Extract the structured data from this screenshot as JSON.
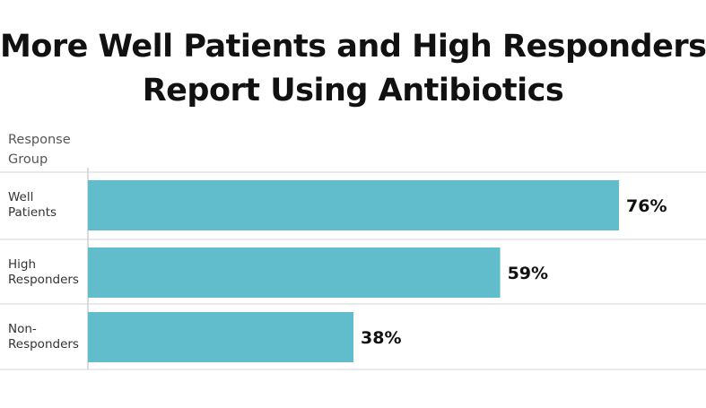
{
  "title_lines": [
    "More Well Patients and High Responders",
    "Report Using Antibiotics"
  ],
  "header_lines": [
    "Response",
    "Group"
  ],
  "bar_color": "#61bccc",
  "chart_data": {
    "type": "bar",
    "orientation": "horizontal",
    "title": "More Well Patients and High Responders Report Using Antibiotics",
    "xlabel": "",
    "ylabel": "Response Group",
    "xlim": [
      0,
      100
    ],
    "categories": [
      {
        "lines": [
          "Well",
          "Patients"
        ]
      },
      {
        "lines": [
          "High",
          "Responders"
        ]
      },
      {
        "lines": [
          "Non-",
          "Responders"
        ]
      }
    ],
    "values": [
      76,
      59,
      38
    ],
    "value_labels": [
      "76%",
      "59%",
      "38%"
    ],
    "grid": false,
    "legend": "none"
  }
}
